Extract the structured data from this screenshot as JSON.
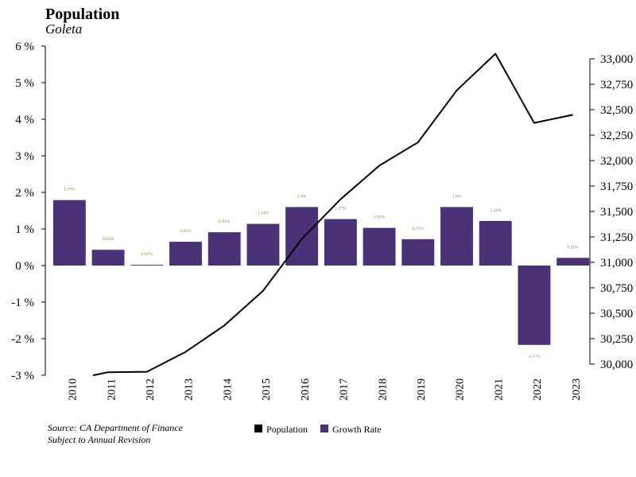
{
  "chart_data": {
    "type": "bar+line",
    "title": "Population",
    "subtitle": "Goleta",
    "categories": [
      "2010",
      "2011",
      "2012",
      "2013",
      "2014",
      "2015",
      "2016",
      "2017",
      "2018",
      "2019",
      "2020",
      "2021",
      "2022",
      "2023"
    ],
    "series": [
      {
        "name": "Growth Rate",
        "type": "bar",
        "axis": "left",
        "color": "#4b3278",
        "values": [
          1.79,
          0.43,
          0.02,
          0.65,
          0.91,
          1.14,
          1.6,
          1.27,
          1.03,
          0.72,
          1.6,
          1.22,
          -2.17,
          0.21
        ],
        "labels": [
          "1.79%",
          "0.43%",
          "0.02%",
          "0.65%",
          "0.91%",
          "1.14%",
          "1.6%",
          "1.27%",
          "1.03%",
          "0.72%",
          "1.6%",
          "1.22%",
          "-2.17%",
          "0.21%"
        ]
      },
      {
        "name": "Population",
        "type": "line",
        "axis": "right",
        "color": "#000000",
        "values": [
          29890,
          29920,
          29925,
          30120,
          30380,
          30720,
          31230,
          31620,
          31950,
          32180,
          32690,
          33050,
          32370,
          32450
        ]
      }
    ],
    "y_left": {
      "range": [
        -3,
        6
      ],
      "ticks": [
        "-3 %",
        "-2 %",
        "-1 %",
        "0 %",
        "1 %",
        "2 %",
        "3 %",
        "4 %",
        "5 %",
        "6 %"
      ]
    },
    "y_right": {
      "range": [
        30000,
        33000
      ],
      "ticks": [
        "30,000",
        "30,250",
        "30,500",
        "30,750",
        "31,000",
        "31,250",
        "31,500",
        "31,750",
        "32,000",
        "32,250",
        "32,500",
        "32,750",
        "33,000"
      ]
    },
    "positive_label_color": "#6b8e23",
    "negative_label_color": "#e0703a",
    "legend": {
      "position": "bottom",
      "items": [
        {
          "name": "Population",
          "color": "#000000"
        },
        {
          "name": "Growth Rate",
          "color": "#4b3278"
        }
      ]
    },
    "source_lines": [
      "Source: CA Department of Finance",
      "Subject to Annual Revision"
    ]
  }
}
